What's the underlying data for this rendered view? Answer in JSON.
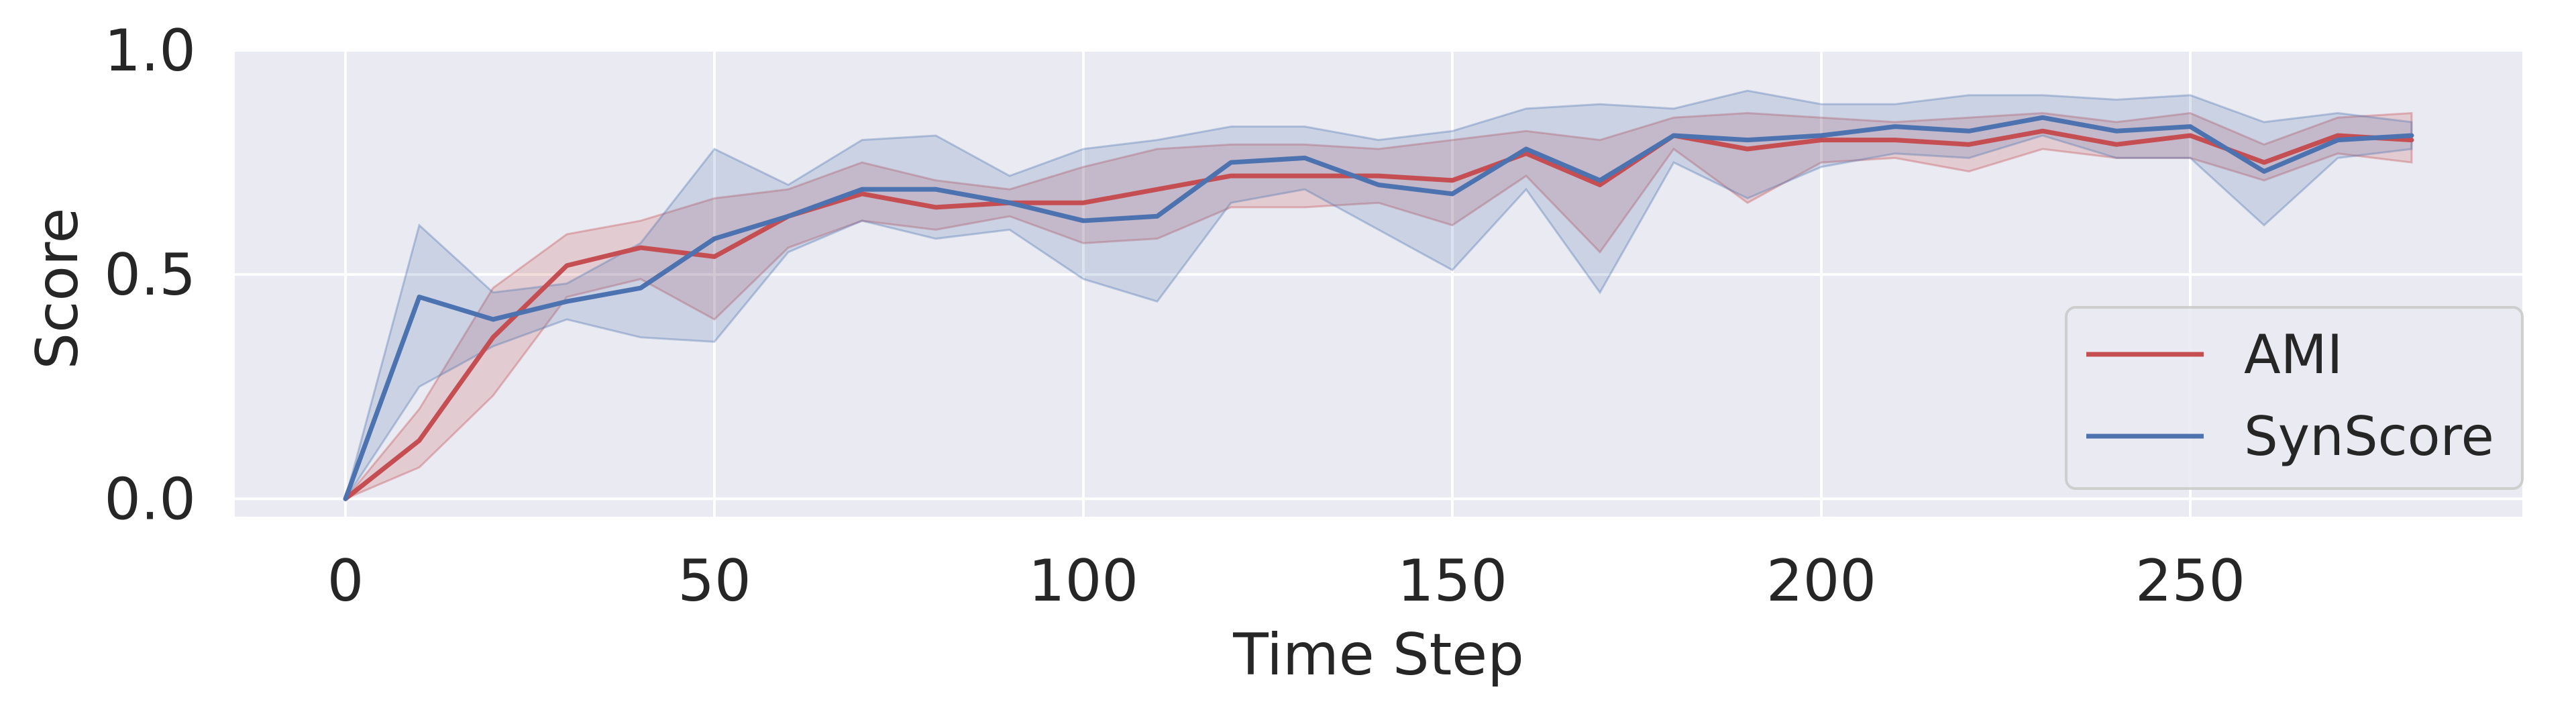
{
  "chart_data": {
    "type": "line",
    "xlabel": "Time Step",
    "ylabel": "Score",
    "xlim": [
      -15,
      295
    ],
    "ylim": [
      -0.04,
      1.0
    ],
    "x_ticks": [
      0,
      50,
      100,
      150,
      200,
      250
    ],
    "y_ticks": [
      0.0,
      0.5,
      1.0
    ],
    "y_tick_labels": [
      "0.0",
      "0.5",
      "1.0"
    ],
    "grid": true,
    "legend_position": "lower-right",
    "x": [
      0,
      10,
      20,
      30,
      40,
      50,
      60,
      70,
      80,
      90,
      100,
      110,
      120,
      130,
      140,
      150,
      160,
      170,
      180,
      190,
      200,
      210,
      220,
      230,
      240,
      250,
      260,
      270,
      280
    ],
    "series": [
      {
        "name": "AMI",
        "color": "#c44e52",
        "values": [
          0.0,
          0.13,
          0.36,
          0.52,
          0.56,
          0.54,
          0.63,
          0.68,
          0.65,
          0.66,
          0.66,
          0.69,
          0.72,
          0.72,
          0.72,
          0.71,
          0.77,
          0.7,
          0.81,
          0.78,
          0.8,
          0.8,
          0.79,
          0.82,
          0.79,
          0.81,
          0.75,
          0.81,
          0.8
        ],
        "lower": [
          0.0,
          0.07,
          0.23,
          0.45,
          0.49,
          0.4,
          0.56,
          0.62,
          0.6,
          0.63,
          0.57,
          0.58,
          0.65,
          0.65,
          0.66,
          0.61,
          0.72,
          0.55,
          0.78,
          0.66,
          0.75,
          0.76,
          0.73,
          0.78,
          0.76,
          0.76,
          0.71,
          0.77,
          0.75
        ],
        "upper": [
          0.0,
          0.2,
          0.47,
          0.59,
          0.62,
          0.67,
          0.69,
          0.75,
          0.71,
          0.69,
          0.74,
          0.78,
          0.79,
          0.79,
          0.78,
          0.8,
          0.82,
          0.8,
          0.85,
          0.86,
          0.85,
          0.84,
          0.85,
          0.86,
          0.84,
          0.86,
          0.79,
          0.85,
          0.86
        ]
      },
      {
        "name": "SynScore",
        "color": "#4c72b0",
        "values": [
          0.0,
          0.45,
          0.4,
          0.44,
          0.47,
          0.58,
          0.63,
          0.69,
          0.69,
          0.66,
          0.62,
          0.63,
          0.75,
          0.76,
          0.7,
          0.68,
          0.78,
          0.71,
          0.81,
          0.8,
          0.81,
          0.83,
          0.82,
          0.85,
          0.82,
          0.83,
          0.73,
          0.8,
          0.81
        ],
        "lower": [
          0.0,
          0.25,
          0.34,
          0.4,
          0.36,
          0.35,
          0.55,
          0.62,
          0.58,
          0.6,
          0.49,
          0.44,
          0.66,
          0.69,
          0.6,
          0.51,
          0.69,
          0.46,
          0.75,
          0.67,
          0.74,
          0.77,
          0.76,
          0.81,
          0.76,
          0.76,
          0.61,
          0.76,
          0.78
        ],
        "upper": [
          0.0,
          0.61,
          0.46,
          0.48,
          0.57,
          0.78,
          0.7,
          0.8,
          0.81,
          0.72,
          0.78,
          0.8,
          0.83,
          0.83,
          0.8,
          0.82,
          0.87,
          0.88,
          0.87,
          0.91,
          0.88,
          0.88,
          0.9,
          0.9,
          0.89,
          0.9,
          0.84,
          0.86,
          0.84
        ]
      }
    ]
  }
}
